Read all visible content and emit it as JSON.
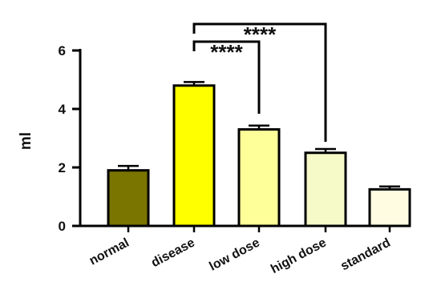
{
  "chart_data": {
    "type": "bar",
    "categories": [
      "normal",
      "disease",
      "low dose",
      "high dose",
      "standard"
    ],
    "values": [
      1.9,
      4.8,
      3.3,
      2.5,
      1.25
    ],
    "errors": [
      0.15,
      0.12,
      0.13,
      0.13,
      0.1
    ],
    "bar_colors": [
      "#7a7400",
      "#ffff00",
      "#ffff99",
      "#f6f9c8",
      "#fffce2"
    ],
    "ylabel": "ml",
    "xlabel": "",
    "title": "",
    "ylim": [
      0,
      6
    ],
    "yticks": [
      "0",
      "2",
      "4",
      "6"
    ],
    "significance": [
      {
        "from": "disease",
        "to": "low dose",
        "label": "****"
      },
      {
        "from": "disease",
        "to": "high dose",
        "label": "****"
      }
    ],
    "grid": false,
    "legend": "none"
  }
}
